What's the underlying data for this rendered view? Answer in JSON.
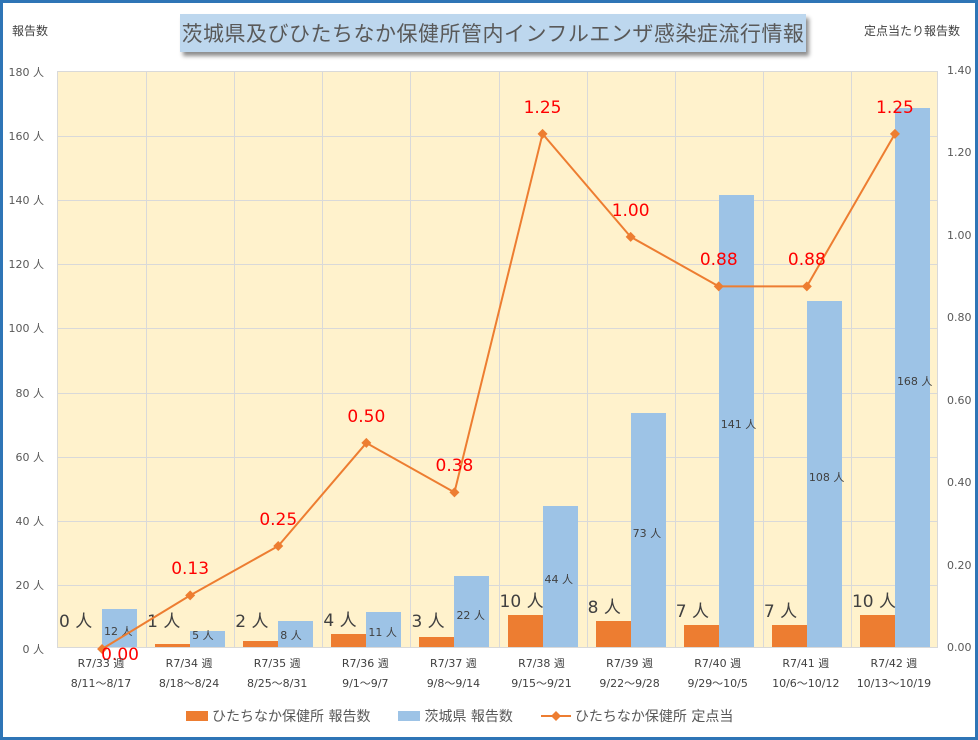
{
  "chart_data": {
    "type": "bar+line",
    "title": "茨城県及びひたちなか保健所管内インフルエンザ感染症流行情報",
    "ylabel_left": "報告数",
    "ylabel_right": "定点当たり報告数",
    "ylim_left": [
      0,
      180
    ],
    "ylim_right": [
      0,
      1.4
    ],
    "yticks_left": [
      "0 人",
      "20 人",
      "40 人",
      "60 人",
      "80 人",
      "100 人",
      "120 人",
      "140 人",
      "160 人",
      "180 人"
    ],
    "yticks_right": [
      "0.00",
      "0.20",
      "0.40",
      "0.60",
      "0.80",
      "1.00",
      "1.20",
      "1.40"
    ],
    "categories": [
      {
        "week": "R7/33 週",
        "range": "8/11〜8/17"
      },
      {
        "week": "R7/34 週",
        "range": "8/18〜8/24"
      },
      {
        "week": "R7/35 週",
        "range": "8/25〜8/31"
      },
      {
        "week": "R7/36 週",
        "range": "9/1〜9/7"
      },
      {
        "week": "R7/37 週",
        "range": "9/8〜9/14"
      },
      {
        "week": "R7/38 週",
        "range": "9/15〜9/21"
      },
      {
        "week": "R7/39 週",
        "range": "9/22〜9/28"
      },
      {
        "week": "R7/40 週",
        "range": "9/29〜10/5"
      },
      {
        "week": "R7/41 週",
        "range": "10/6〜10/12"
      },
      {
        "week": "R7/42 週",
        "range": "10/13〜10/19"
      }
    ],
    "series": [
      {
        "name": "ひたちなか保健所 報告数",
        "type": "bar",
        "axis": "left",
        "color": "#ed7d31",
        "values": [
          0,
          1,
          2,
          4,
          3,
          10,
          8,
          7,
          7,
          10
        ],
        "labels": [
          "0 人",
          "1 人",
          "2 人",
          "4 人",
          "3 人",
          "10 人",
          "8 人",
          "7 人",
          "7 人",
          "10 人"
        ]
      },
      {
        "name": "茨城県 報告数",
        "type": "bar",
        "axis": "left",
        "color": "#9dc3e6",
        "values": [
          12,
          5,
          8,
          11,
          22,
          44,
          73,
          141,
          108,
          168
        ],
        "labels": [
          "12 人",
          "5 人",
          "8 人",
          "11 人",
          "22 人",
          "44 人",
          "73 人",
          "141 人",
          "108 人",
          "168 人"
        ]
      },
      {
        "name": "ひたちなか保健所 定点当",
        "type": "line",
        "axis": "right",
        "color": "#ed7d31",
        "marker": "diamond",
        "values": [
          0.0,
          0.13,
          0.25,
          0.5,
          0.38,
          1.25,
          1.0,
          0.88,
          0.88,
          1.25
        ],
        "labels": [
          "0.00",
          "0.13",
          "0.25",
          "0.50",
          "0.38",
          "1.25",
          "1.00",
          "0.88",
          "0.88",
          "1.25"
        ],
        "label_color": "#ff0000"
      }
    ],
    "grid": true,
    "legend_position": "bottom"
  },
  "legend": [
    {
      "label": "ひたちなか保健所 報告数",
      "swatch": "bar-orange"
    },
    {
      "label": "茨城県 報告数",
      "swatch": "bar-blue"
    },
    {
      "label": "ひたちなか保健所 定点当",
      "swatch": "line-diamond-orange"
    }
  ]
}
